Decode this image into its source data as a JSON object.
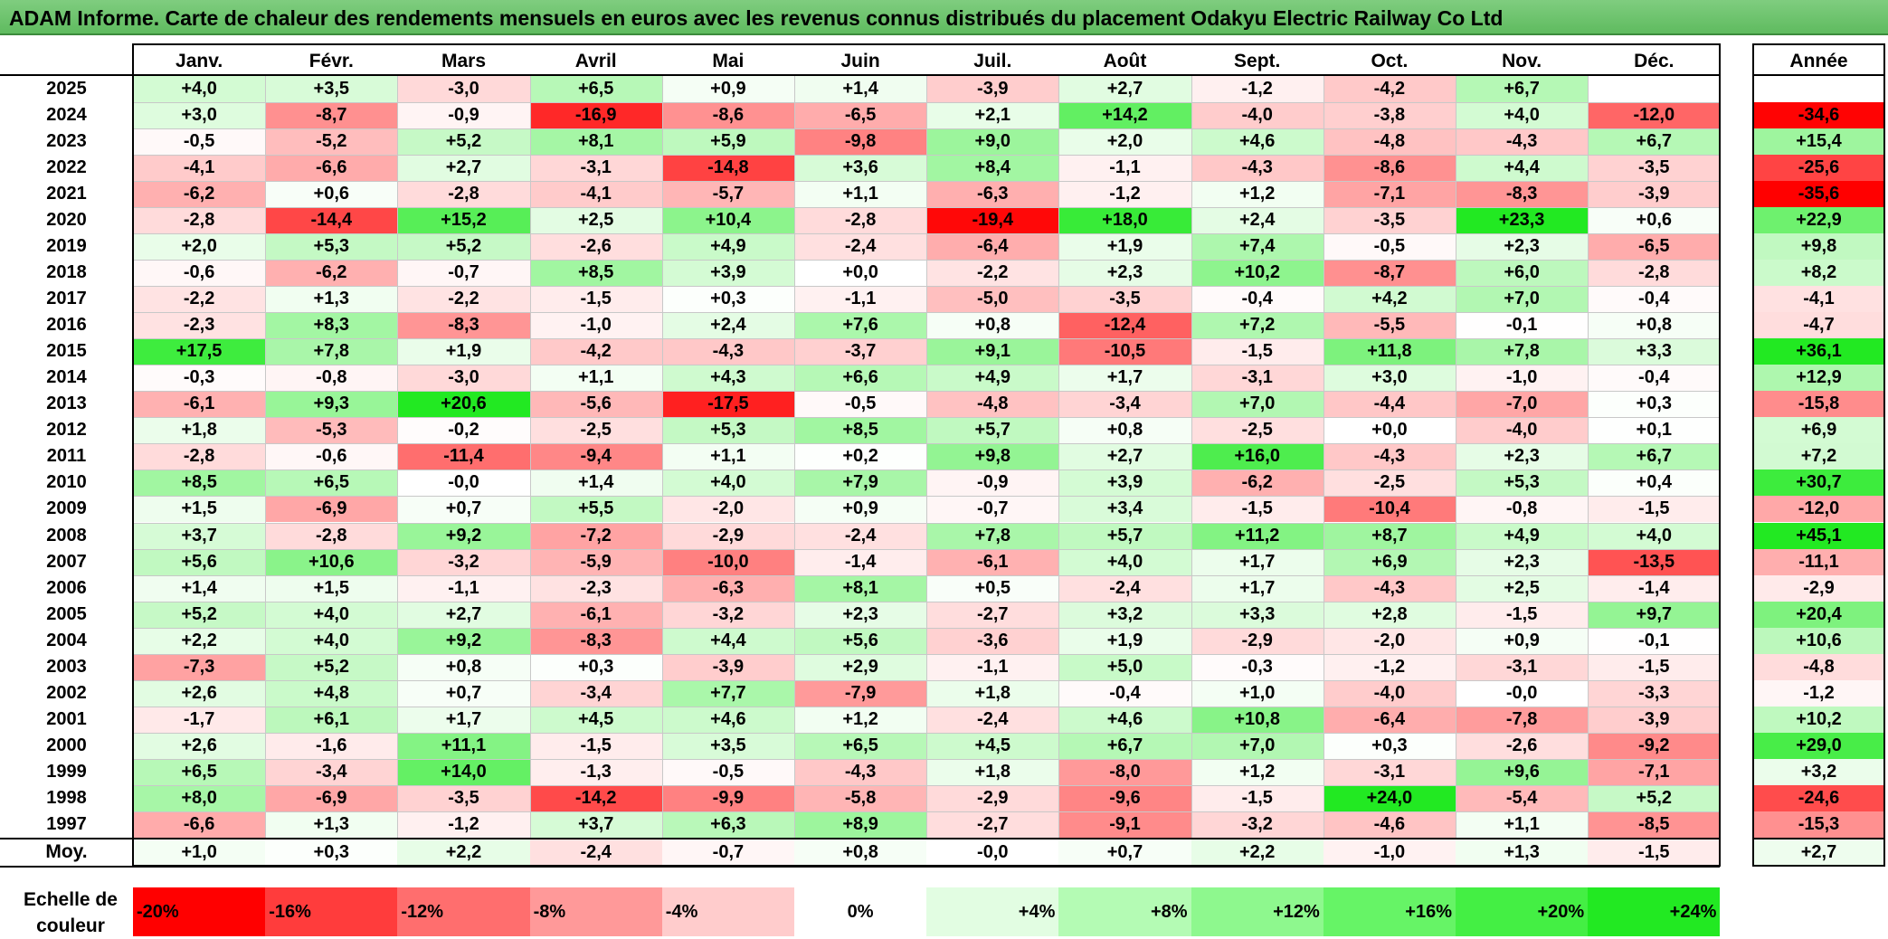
{
  "title": "ADAM Informe. Carte de chaleur des rendements mensuels en euros avec les revenus connus distribués du placement Odakyu Electric Railway Co Ltd",
  "chart_data": {
    "type": "heatmap",
    "months": [
      "Janv.",
      "Févr.",
      "Mars",
      "Avril",
      "Mai",
      "Juin",
      "Juil.",
      "Août",
      "Sept.",
      "Oct.",
      "Nov.",
      "Déc."
    ],
    "year_header": "Année",
    "rows": [
      {
        "year": "2025",
        "values": [
          "+4,0",
          "+3,5",
          "-3,0",
          "+6,5",
          "+0,9",
          "+1,4",
          "-3,9",
          "+2,7",
          "-1,2",
          "-4,2",
          "+6,7",
          ""
        ],
        "annual": ""
      },
      {
        "year": "2024",
        "values": [
          "+3,0",
          "-8,7",
          "-0,9",
          "-16,9",
          "-8,6",
          "-6,5",
          "+2,1",
          "+14,2",
          "-4,0",
          "-3,8",
          "+4,0",
          "-12,0"
        ],
        "annual": "-34,6"
      },
      {
        "year": "2023",
        "values": [
          "-0,5",
          "-5,2",
          "+5,2",
          "+8,1",
          "+5,9",
          "-9,8",
          "+9,0",
          "+2,0",
          "+4,6",
          "-4,8",
          "-4,3",
          "+6,7"
        ],
        "annual": "+15,4"
      },
      {
        "year": "2022",
        "values": [
          "-4,1",
          "-6,6",
          "+2,7",
          "-3,1",
          "-14,8",
          "+3,6",
          "+8,4",
          "-1,1",
          "-4,3",
          "-8,6",
          "+4,4",
          "-3,5"
        ],
        "annual": "-25,6"
      },
      {
        "year": "2021",
        "values": [
          "-6,2",
          "+0,6",
          "-2,8",
          "-4,1",
          "-5,7",
          "+1,1",
          "-6,3",
          "-1,2",
          "+1,2",
          "-7,1",
          "-8,3",
          "-3,9"
        ],
        "annual": "-35,6"
      },
      {
        "year": "2020",
        "values": [
          "-2,8",
          "-14,4",
          "+15,2",
          "+2,5",
          "+10,4",
          "-2,8",
          "-19,4",
          "+18,0",
          "+2,4",
          "-3,5",
          "+23,3",
          "+0,6"
        ],
        "annual": "+22,9"
      },
      {
        "year": "2019",
        "values": [
          "+2,0",
          "+5,3",
          "+5,2",
          "-2,6",
          "+4,9",
          "-2,4",
          "-6,4",
          "+1,9",
          "+7,4",
          "-0,5",
          "+2,3",
          "-6,5"
        ],
        "annual": "+9,8"
      },
      {
        "year": "2018",
        "values": [
          "-0,6",
          "-6,2",
          "-0,7",
          "+8,5",
          "+3,9",
          "+0,0",
          "-2,2",
          "+2,3",
          "+10,2",
          "-8,7",
          "+6,0",
          "-2,8"
        ],
        "annual": "+8,2"
      },
      {
        "year": "2017",
        "values": [
          "-2,2",
          "+1,3",
          "-2,2",
          "-1,5",
          "+0,3",
          "-1,1",
          "-5,0",
          "-3,5",
          "-0,4",
          "+4,2",
          "+7,0",
          "-0,4"
        ],
        "annual": "-4,1"
      },
      {
        "year": "2016",
        "values": [
          "-2,3",
          "+8,3",
          "-8,3",
          "-1,0",
          "+2,4",
          "+7,6",
          "+0,8",
          "-12,4",
          "+7,2",
          "-5,5",
          "-0,1",
          "+0,8"
        ],
        "annual": "-4,7"
      },
      {
        "year": "2015",
        "values": [
          "+17,5",
          "+7,8",
          "+1,9",
          "-4,2",
          "-4,3",
          "-3,7",
          "+9,1",
          "-10,5",
          "-1,5",
          "+11,8",
          "+7,8",
          "+3,3"
        ],
        "annual": "+36,1"
      },
      {
        "year": "2014",
        "values": [
          "-0,3",
          "-0,8",
          "-3,0",
          "+1,1",
          "+4,3",
          "+6,6",
          "+4,9",
          "+1,7",
          "-3,1",
          "+3,0",
          "-1,0",
          "-0,4"
        ],
        "annual": "+12,9"
      },
      {
        "year": "2013",
        "values": [
          "-6,1",
          "+9,3",
          "+20,6",
          "-5,6",
          "-17,5",
          "-0,5",
          "-4,8",
          "-3,4",
          "+7,0",
          "-4,4",
          "-7,0",
          "+0,3"
        ],
        "annual": "-15,8"
      },
      {
        "year": "2012",
        "values": [
          "+1,8",
          "-5,3",
          "-0,2",
          "-2,5",
          "+5,3",
          "+8,5",
          "+5,7",
          "+0,8",
          "-2,5",
          "+0,0",
          "-4,0",
          "+0,1"
        ],
        "annual": "+6,9"
      },
      {
        "year": "2011",
        "values": [
          "-2,8",
          "-0,6",
          "-11,4",
          "-9,4",
          "+1,1",
          "+0,2",
          "+9,8",
          "+2,7",
          "+16,0",
          "-4,3",
          "+2,3",
          "+6,7"
        ],
        "annual": "+7,2"
      },
      {
        "year": "2010",
        "values": [
          "+8,5",
          "+6,5",
          "-0,0",
          "+1,4",
          "+4,0",
          "+7,9",
          "-0,9",
          "+3,9",
          "-6,2",
          "-2,5",
          "+5,3",
          "+0,4"
        ],
        "annual": "+30,7"
      },
      {
        "year": "2009",
        "values": [
          "+1,5",
          "-6,9",
          "+0,7",
          "+5,5",
          "-2,0",
          "+0,9",
          "-0,7",
          "+3,4",
          "-1,5",
          "-10,4",
          "-0,8",
          "-1,5"
        ],
        "annual": "-12,0"
      },
      {
        "year": "2008",
        "values": [
          "+3,7",
          "-2,8",
          "+9,2",
          "-7,2",
          "-2,9",
          "-2,4",
          "+7,8",
          "+5,7",
          "+11,2",
          "+8,7",
          "+4,9",
          "+4,0"
        ],
        "annual": "+45,1"
      },
      {
        "year": "2007",
        "values": [
          "+5,6",
          "+10,6",
          "-3,2",
          "-5,9",
          "-10,0",
          "-1,4",
          "-6,1",
          "+4,0",
          "+1,7",
          "+6,9",
          "+2,3",
          "-13,5"
        ],
        "annual": "-11,1"
      },
      {
        "year": "2006",
        "values": [
          "+1,4",
          "+1,5",
          "-1,1",
          "-2,3",
          "-6,3",
          "+8,1",
          "+0,5",
          "-2,4",
          "+1,7",
          "-4,3",
          "+2,5",
          "-1,4"
        ],
        "annual": "-2,9"
      },
      {
        "year": "2005",
        "values": [
          "+5,2",
          "+4,0",
          "+2,7",
          "-6,1",
          "-3,2",
          "+2,3",
          "-2,7",
          "+3,2",
          "+3,3",
          "+2,8",
          "-1,5",
          "+9,7"
        ],
        "annual": "+20,4"
      },
      {
        "year": "2004",
        "values": [
          "+2,2",
          "+4,0",
          "+9,2",
          "-8,3",
          "+4,4",
          "+5,6",
          "-3,6",
          "+1,9",
          "-2,9",
          "-2,0",
          "+0,9",
          "-0,1"
        ],
        "annual": "+10,6"
      },
      {
        "year": "2003",
        "values": [
          "-7,3",
          "+5,2",
          "+0,8",
          "+0,3",
          "-3,9",
          "+2,9",
          "-1,1",
          "+5,0",
          "-0,3",
          "-1,2",
          "-3,1",
          "-1,5"
        ],
        "annual": "-4,8"
      },
      {
        "year": "2002",
        "values": [
          "+2,6",
          "+4,8",
          "+0,7",
          "-3,4",
          "+7,7",
          "-7,9",
          "+1,8",
          "-0,4",
          "+1,0",
          "-4,0",
          "-0,0",
          "-3,3"
        ],
        "annual": "-1,2"
      },
      {
        "year": "2001",
        "values": [
          "-1,7",
          "+6,1",
          "+1,7",
          "+4,5",
          "+4,6",
          "+1,2",
          "-2,4",
          "+4,6",
          "+10,8",
          "-6,4",
          "-7,8",
          "-3,9"
        ],
        "annual": "+10,2"
      },
      {
        "year": "2000",
        "values": [
          "+2,6",
          "-1,6",
          "+11,1",
          "-1,5",
          "+3,5",
          "+6,5",
          "+4,5",
          "+6,7",
          "+7,0",
          "+0,3",
          "-2,6",
          "-9,2"
        ],
        "annual": "+29,0"
      },
      {
        "year": "1999",
        "values": [
          "+6,5",
          "-3,4",
          "+14,0",
          "-1,3",
          "-0,5",
          "-4,3",
          "+1,8",
          "-8,0",
          "+1,2",
          "-3,1",
          "+9,6",
          "-7,1"
        ],
        "annual": "+3,2"
      },
      {
        "year": "1998",
        "values": [
          "+8,0",
          "-6,9",
          "-3,5",
          "-14,2",
          "-9,9",
          "-5,8",
          "-2,9",
          "-9,6",
          "-1,5",
          "+24,0",
          "-5,4",
          "+5,2"
        ],
        "annual": "-24,6"
      },
      {
        "year": "1997",
        "values": [
          "-6,6",
          "+1,3",
          "-1,2",
          "+3,7",
          "+6,3",
          "+8,9",
          "-2,7",
          "-9,1",
          "-3,2",
          "-4,6",
          "+1,1",
          "-8,5"
        ],
        "annual": "-15,3"
      }
    ],
    "average": {
      "label": "Moy.",
      "values": [
        "+1,0",
        "+0,3",
        "+2,2",
        "-2,4",
        "-0,7",
        "+0,8",
        "-0,0",
        "+0,7",
        "+2,2",
        "-1,0",
        "+1,3",
        "-1,5"
      ],
      "annual": "+2,7"
    },
    "scale": {
      "label": "Echelle de couleur",
      "items": [
        "-20%",
        "-16%",
        "-12%",
        "-8%",
        "-4%",
        "0%",
        "+4%",
        "+8%",
        "+12%",
        "+16%",
        "+20%",
        "+24%"
      ],
      "colors": [
        "#ff0000",
        "#ff3c3c",
        "#ff6e6e",
        "#ff9999",
        "#ffcccc",
        "#ffffff",
        "#e2fde2",
        "#b4fbb4",
        "#8ef88e",
        "#66f466",
        "#44ef44",
        "#22e922"
      ]
    },
    "colors": {
      "negative_max": "#ff0000",
      "positive_max": "#22e922",
      "neutral": "#ffffff"
    }
  }
}
